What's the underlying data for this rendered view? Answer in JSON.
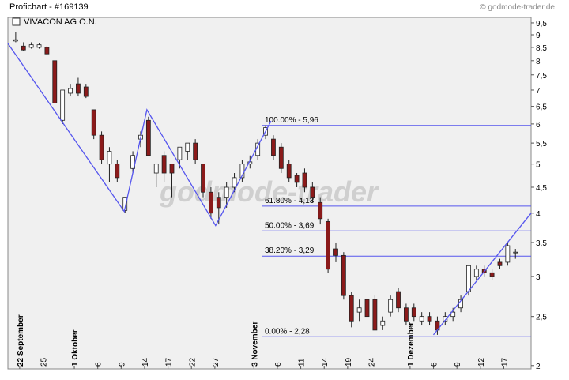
{
  "header": {
    "title": "Profichart - #169139",
    "source": "© godmode-trader.de",
    "watermark": "godmode-trader"
  },
  "chart_data": {
    "type": "candlestick",
    "legend": "VIVACON AG O.N.",
    "log_scale": true,
    "grid": false,
    "up_color": "#ffffff",
    "down_color": "#8b1a1a",
    "line_color": "#5555ee",
    "categories": [
      "22 September",
      null,
      null,
      "25",
      null,
      null,
      null,
      "1 Oktober",
      null,
      null,
      "6",
      null,
      null,
      "9",
      null,
      null,
      "14",
      null,
      null,
      "17",
      null,
      null,
      "22",
      null,
      null,
      "27",
      null,
      null,
      null,
      null,
      "3 November",
      null,
      null,
      "6",
      null,
      null,
      "11",
      null,
      null,
      "14",
      null,
      null,
      "19",
      null,
      null,
      "24",
      null,
      null,
      null,
      null,
      "1 Dezember",
      null,
      null,
      "6",
      null,
      null,
      "9",
      null,
      null,
      "12",
      null,
      null,
      "17",
      null,
      null
    ],
    "open": [
      8.75,
      8.55,
      8.5,
      8.5,
      8.5,
      8.0,
      6.1,
      6.9,
      7.2,
      7.1,
      6.4,
      5.7,
      5.0,
      5.0,
      4.05,
      4.9,
      5.6,
      6.1,
      4.8,
      5.2,
      5.0,
      5.1,
      5.3,
      5.5,
      5.0,
      4.4,
      4.3,
      4.3,
      4.5,
      4.7,
      5.0,
      5.2,
      5.7,
      5.6,
      5.4,
      5.0,
      4.75,
      4.8,
      4.5,
      4.2,
      3.85,
      3.4,
      3.3,
      2.75,
      2.55,
      2.7,
      2.7,
      2.4,
      2.55,
      2.8,
      2.6,
      2.6,
      2.45,
      2.5,
      2.45,
      2.45,
      2.5,
      2.6,
      2.8,
      3.0,
      3.1,
      3.05,
      3.2,
      3.2,
      3.35
    ],
    "high": [
      9.1,
      8.7,
      8.7,
      8.65,
      8.55,
      8.0,
      7.0,
      7.2,
      7.4,
      7.2,
      6.4,
      5.8,
      5.4,
      5.1,
      4.3,
      5.3,
      5.8,
      6.2,
      5.0,
      5.3,
      5.0,
      5.4,
      5.5,
      5.6,
      5.0,
      4.5,
      4.4,
      4.6,
      4.8,
      5.1,
      5.2,
      5.6,
      5.96,
      5.7,
      5.5,
      5.1,
      4.8,
      4.9,
      4.6,
      4.3,
      3.9,
      3.5,
      3.35,
      2.8,
      2.7,
      2.75,
      2.75,
      2.5,
      2.75,
      2.85,
      2.65,
      2.65,
      2.55,
      2.55,
      2.5,
      2.55,
      2.6,
      2.75,
      3.15,
      3.15,
      3.15,
      3.1,
      3.25,
      3.5,
      3.4
    ],
    "low": [
      8.7,
      8.35,
      8.45,
      8.45,
      8.2,
      6.6,
      6.0,
      6.8,
      6.8,
      6.75,
      5.6,
      5.0,
      4.6,
      4.6,
      4.0,
      4.8,
      5.4,
      5.2,
      4.5,
      4.6,
      4.3,
      4.9,
      5.1,
      5.0,
      4.3,
      3.9,
      3.8,
      4.1,
      4.4,
      4.6,
      4.9,
      5.1,
      5.6,
      5.1,
      4.8,
      4.6,
      4.5,
      4.4,
      4.2,
      3.8,
      3.05,
      3.2,
      2.7,
      2.38,
      2.45,
      2.4,
      2.35,
      2.35,
      2.5,
      2.55,
      2.4,
      2.45,
      2.4,
      2.4,
      2.3,
      2.4,
      2.45,
      2.55,
      2.75,
      2.95,
      3.0,
      2.95,
      3.1,
      3.15,
      3.25
    ],
    "close": [
      8.8,
      8.4,
      8.6,
      8.6,
      8.25,
      6.6,
      7.0,
      7.05,
      6.9,
      6.8,
      5.7,
      5.1,
      5.3,
      4.7,
      4.3,
      5.2,
      5.7,
      5.2,
      5.0,
      4.8,
      4.8,
      5.4,
      5.5,
      5.1,
      4.4,
      4.0,
      4.1,
      4.5,
      4.7,
      5.0,
      5.05,
      5.5,
      5.9,
      5.2,
      4.9,
      4.7,
      4.6,
      4.5,
      4.3,
      3.9,
      3.1,
      3.3,
      2.75,
      2.45,
      2.6,
      2.5,
      2.35,
      2.45,
      2.7,
      2.6,
      2.45,
      2.5,
      2.5,
      2.45,
      2.35,
      2.5,
      2.55,
      2.7,
      3.15,
      3.1,
      3.05,
      3.0,
      3.15,
      3.45,
      3.35
    ],
    "ylim": [
      1.97,
      9.74
    ],
    "yticks": [
      2,
      {
        "value": 2.5,
        "label": "2,5"
      },
      3,
      {
        "value": 3.5,
        "label": "3,5"
      },
      4,
      {
        "value": 4.5,
        "label": "4,5"
      },
      5,
      {
        "value": 5.5,
        "label": "5,5"
      },
      6,
      {
        "value": 6.5,
        "label": "6,5"
      },
      7,
      {
        "value": 7.5,
        "label": "7,5"
      },
      8,
      {
        "value": 8.5,
        "label": "8,5"
      },
      9,
      {
        "value": 9.5,
        "label": "9,5"
      }
    ],
    "fib_levels": [
      {
        "label": "100.00% - 5,96",
        "value": 5.96
      },
      {
        "label": "61.80% - 4,13",
        "value": 4.13
      },
      {
        "label": "50.00% - 3,69",
        "value": 3.69
      },
      {
        "label": "38.20% - 3,29",
        "value": 3.29
      },
      {
        "label": "0.00% - 2,28",
        "value": 2.28
      }
    ],
    "trendlines": [
      {
        "x": [
          -1,
          13.9,
          16.8,
          25.6,
          32.7
        ],
        "values": [
          8.65,
          4.03,
          6.4,
          3.78,
          6.08
        ]
      },
      {
        "x": [
          53.5,
          66
        ],
        "values": [
          2.3,
          4.0
        ]
      }
    ]
  }
}
